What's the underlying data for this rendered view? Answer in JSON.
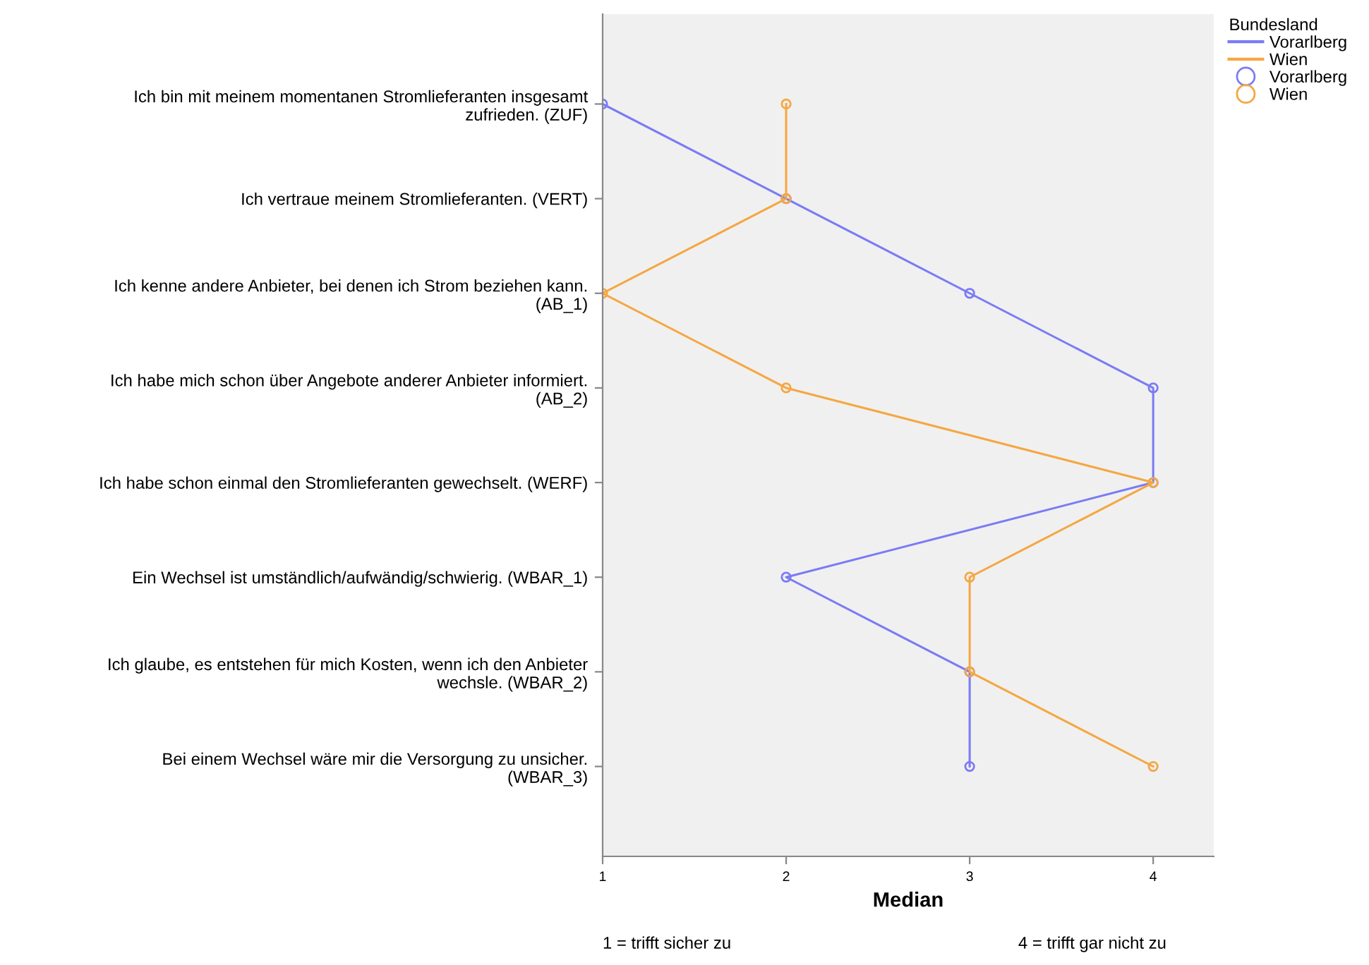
{
  "chart_data": {
    "type": "line",
    "orientation": "horizontal",
    "xlabel": "Median",
    "legend_title": "Bundesland",
    "legend": "top right",
    "marker": "circle",
    "line_style": "solid",
    "grid": false,
    "categories": [
      "Ich bin mit meinem momentanen Stromlieferanten insgesamt\nzufrieden. (ZUF)",
      "Ich vertraue meinem Stromlieferanten. (VERT)",
      "Ich kenne andere Anbieter, bei denen ich Strom beziehen kann.\n(AB_1)",
      "Ich habe mich schon über Angebote anderer Anbieter informiert.\n(AB_2)",
      "Ich habe schon einmal den Stromlieferanten gewechselt. (WERF)",
      "Ein Wechsel ist umständlich/aufwändig/schwierig. (WBAR_1)",
      "Ich glaube, es entstehen für mich Kosten, wenn ich den Anbieter\nwechsle. (WBAR_2)",
      "Bei einem Wechsel wäre mir die Versorgung zu unsicher.\n(WBAR_3)"
    ],
    "series": [
      {
        "name": "Vorarlberg",
        "color": "#7b7bf5",
        "values": [
          1,
          2,
          3,
          4,
          4,
          2,
          3,
          3
        ]
      },
      {
        "name": "Wien",
        "color": "#f5a742",
        "values": [
          2,
          2,
          1,
          2,
          4,
          3,
          3,
          4
        ]
      }
    ],
    "xlim": [
      1,
      4.33
    ],
    "xticks": [
      1,
      2,
      3,
      4
    ],
    "annotations": [
      "1 = trifft sicher zu",
      "4 = trifft gar nicht zu"
    ]
  }
}
